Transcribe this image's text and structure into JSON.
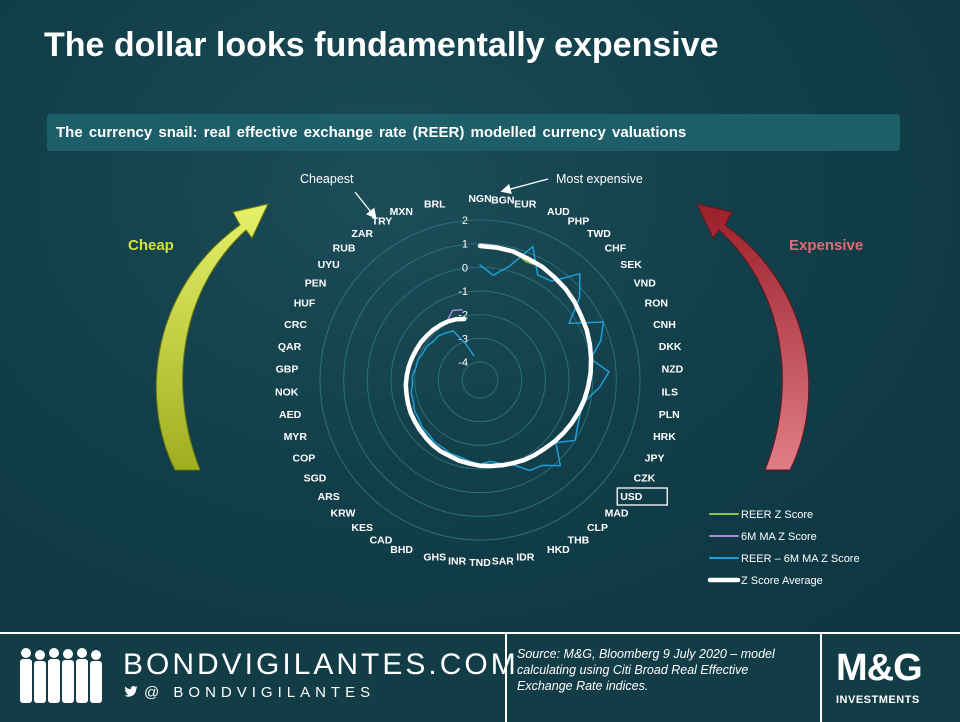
{
  "title": "The dollar looks fundamentally expensive",
  "subtitle": "The currency snail: real effective exchange rate (REER) modelled currency valuations",
  "annotations": {
    "cheapest": "Cheapest",
    "most_expensive": "Most expensive",
    "cheap": "Cheap",
    "expensive": "Expensive",
    "highlight": "USD"
  },
  "colors": {
    "background": "#0f3a45",
    "subtitle_bar": "#1d5e69",
    "reer_z": "#8dc63f",
    "ma_z": "#a98bd8",
    "diff_z": "#1e9fd6",
    "average": "#ffffff",
    "cheap_arrow": "#d6e03a",
    "expensive_arrow": "#c0303a"
  },
  "chart_data": {
    "type": "radar",
    "title": "",
    "direction_note": "currencies plotted clockwise from most expensive (NGN) spiralling inward to cheapest (BRL)",
    "radial_ticks": [
      2,
      1,
      0,
      -1,
      -2,
      -3,
      -4
    ],
    "rlim": [
      -4,
      2
    ],
    "grid": true,
    "legend_position": "bottom-right",
    "categories": [
      "NGN",
      "BGN",
      "EUR",
      "AUD",
      "PHP",
      "TWD",
      "CHF",
      "SEK",
      "VND",
      "RON",
      "CNH",
      "DKK",
      "NZD",
      "ILS",
      "PLN",
      "HRK",
      "JPY",
      "CZK",
      "USD",
      "MAD",
      "CLP",
      "THB",
      "HKD",
      "IDR",
      "SAR",
      "TND",
      "INR",
      "GHS",
      "BHD",
      "CAD",
      "KES",
      "KRW",
      "ARS",
      "SGD",
      "COP",
      "MYR",
      "AED",
      "NOK",
      "GBP",
      "QAR",
      "CRC",
      "HUF",
      "PEN",
      "UYU",
      "RUB",
      "ZAR",
      "TRY",
      "MXN",
      "BRL"
    ],
    "series": [
      {
        "name": "REER Z Score",
        "values": [
          0.9,
          0.85,
          0.85,
          0.6,
          0.7,
          0.6,
          0.5,
          0.4,
          0.25,
          0.2,
          0.1,
          0.0,
          -0.1,
          -0.2,
          -0.3,
          -0.4,
          -0.5,
          -0.6,
          -0.7,
          -0.8,
          -0.85,
          -0.9,
          -1.0,
          -1.05,
          -1.1,
          -1.15,
          -1.2,
          -1.25,
          -1.3,
          -1.3,
          -1.35,
          -1.4,
          -1.45,
          -1.5,
          -1.5,
          -1.55,
          -1.6,
          -1.6,
          -1.65,
          -1.7,
          -1.75,
          -1.8,
          -1.8,
          -1.85,
          -1.85,
          -1.9,
          -1.9,
          -2.0,
          -2.05
        ]
      },
      {
        "name": "6M MA Z Score",
        "values": [
          1.0,
          0.95,
          0.9,
          0.7,
          0.75,
          0.6,
          0.55,
          0.45,
          0.3,
          0.25,
          0.1,
          0.05,
          -0.05,
          -0.15,
          -0.25,
          -0.35,
          -0.45,
          -0.55,
          -0.65,
          -0.75,
          -0.8,
          -0.9,
          -0.95,
          -1.0,
          -1.1,
          -1.1,
          -1.15,
          -1.2,
          -1.25,
          -1.3,
          -1.3,
          -1.35,
          -1.4,
          -1.45,
          -1.5,
          -1.5,
          -1.55,
          -1.6,
          -1.6,
          -1.65,
          -1.7,
          -1.7,
          -1.75,
          -1.8,
          -1.8,
          -1.85,
          -1.9,
          -1.6,
          -1.7
        ]
      },
      {
        "name": "REER – 6M MA Z Score",
        "values": [
          0.1,
          -0.3,
          0.2,
          1.3,
          0.3,
          0.4,
          1.4,
          0.7,
          -0.3,
          1.0,
          0.6,
          0.0,
          0.7,
          0.3,
          -0.2,
          -0.3,
          -0.2,
          0.0,
          -0.6,
          0.2,
          -0.3,
          -0.4,
          -0.9,
          -1.1,
          -1.3,
          -1.2,
          -1.3,
          -1.4,
          -1.4,
          -1.5,
          -1.5,
          -1.6,
          -1.6,
          -1.7,
          -1.7,
          -1.8,
          -1.8,
          -1.9,
          -1.9,
          -2.0,
          -2.0,
          -2.1,
          -2.1,
          -2.2,
          -2.2,
          -2.3,
          -2.4,
          -3.1,
          -3.7
        ]
      },
      {
        "name": "Z Score Average",
        "values": [
          0.9,
          0.88,
          0.85,
          0.75,
          0.7,
          0.6,
          0.52,
          0.42,
          0.3,
          0.22,
          0.12,
          0.02,
          -0.08,
          -0.18,
          -0.28,
          -0.38,
          -0.48,
          -0.58,
          -0.68,
          -0.78,
          -0.84,
          -0.9,
          -0.98,
          -1.04,
          -1.1,
          -1.14,
          -1.2,
          -1.24,
          -1.3,
          -1.32,
          -1.36,
          -1.42,
          -1.46,
          -1.5,
          -1.52,
          -1.56,
          -1.6,
          -1.62,
          -1.66,
          -1.7,
          -1.74,
          -1.78,
          -1.8,
          -1.84,
          -1.86,
          -1.9,
          -1.94,
          -2.0,
          -2.1
        ]
      }
    ]
  },
  "footer": {
    "brand": "BONDVIGILANTES.COM",
    "handle": "@ BONDVIGILANTES",
    "source": "Source: M&G, Bloomberg 9 July 2020 – model calculating using Citi Broad Real Effective Exchange Rate indices.",
    "logo": "M&G",
    "logo_sub": "INVESTMENTS"
  }
}
